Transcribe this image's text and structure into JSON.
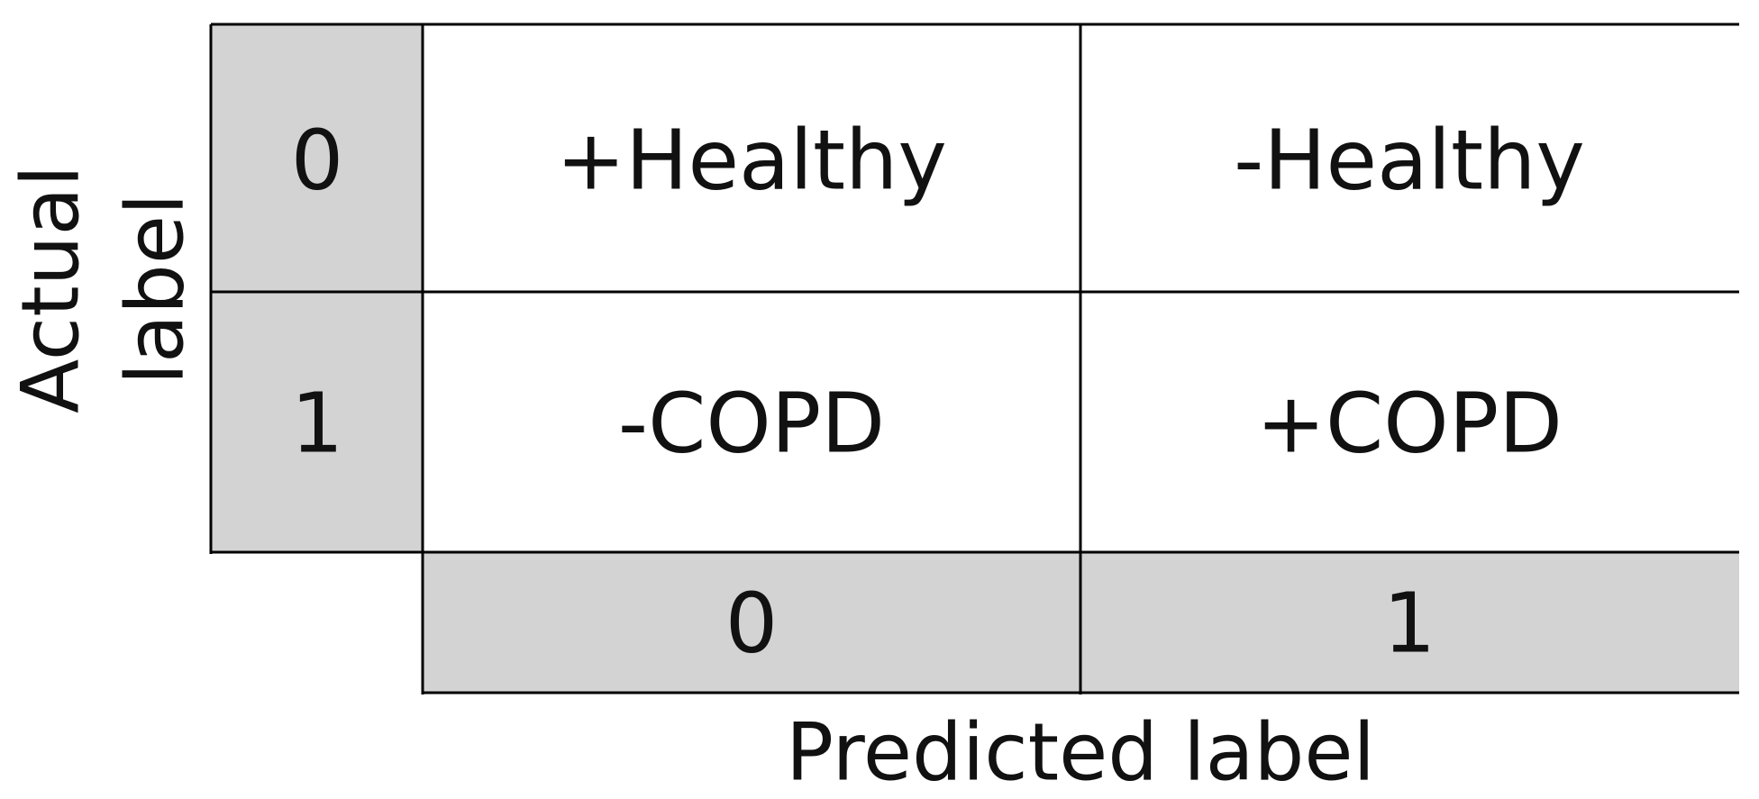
{
  "matrix": {
    "y_axis_label": [
      "Actual",
      "label"
    ],
    "x_axis_label": "Predicted label",
    "row_labels": [
      "0",
      "1"
    ],
    "col_labels": [
      "0",
      "1"
    ],
    "cells": [
      [
        "+Healthy",
        "-Healthy"
      ],
      [
        "-COPD",
        "+COPD"
      ]
    ]
  }
}
